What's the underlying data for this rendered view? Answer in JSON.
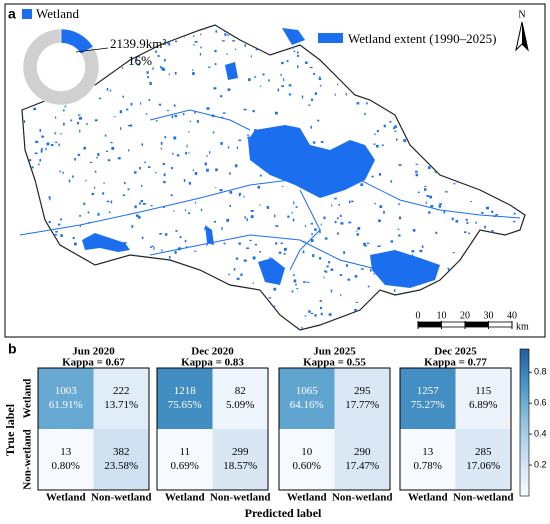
{
  "chart_data": [
    {
      "type": "pie",
      "categories": [
        "Wetland",
        null
      ],
      "values": [
        16,
        84
      ],
      "colors": [
        "#1b6fee",
        "#d0d0d0"
      ],
      "value_labels": [
        "16%",
        null
      ],
      "annotation": "2139.9km²"
    },
    {
      "type": "heatmap",
      "title": "Jun 2020",
      "subtitle": "Kappa = 0.67",
      "counts": [
        [
          1003,
          222
        ],
        [
          13,
          382
        ]
      ],
      "values": [
        [
          0.6191,
          0.1371
        ],
        [
          0.008,
          0.2358
        ]
      ],
      "value_labels": [
        [
          "61.91%",
          "13.71%"
        ],
        [
          "0.80%",
          "23.58%"
        ]
      ]
    },
    {
      "type": "heatmap",
      "title": "Dec 2020",
      "subtitle": "Kappa = 0.83",
      "counts": [
        [
          1218,
          82
        ],
        [
          11,
          299
        ]
      ],
      "values": [
        [
          0.7565,
          0.0509
        ],
        [
          0.0069,
          0.1857
        ]
      ],
      "value_labels": [
        [
          "75.65%",
          "5.09%"
        ],
        [
          "0.69%",
          "18.57%"
        ]
      ]
    },
    {
      "type": "heatmap",
      "title": "Jun 2025",
      "subtitle": "Kappa = 0.55",
      "counts": [
        [
          1065,
          295
        ],
        [
          10,
          290
        ]
      ],
      "values": [
        [
          0.6416,
          0.1777
        ],
        [
          0.006,
          0.1747
        ]
      ],
      "value_labels": [
        [
          "64.16%",
          "17.77%"
        ],
        [
          "0.60%",
          "17.47%"
        ]
      ]
    },
    {
      "type": "heatmap",
      "title": "Dec 2025",
      "subtitle": "Kappa = 0.77",
      "counts": [
        [
          1257,
          115
        ],
        [
          13,
          285
        ]
      ],
      "values": [
        [
          0.7527,
          0.0689
        ],
        [
          0.0078,
          0.1706
        ]
      ],
      "value_labels": [
        [
          "75.27%",
          "6.89%"
        ],
        [
          "0.78%",
          "17.06%"
        ]
      ]
    }
  ],
  "map": {
    "panel_label": "a",
    "legend": "Wetland extent (1990–2025)",
    "color": "#1b6fee",
    "north": "N",
    "scale_ticks": [
      0,
      10,
      20,
      30,
      40
    ],
    "scale_unit": "km"
  },
  "panel_b": {
    "panel_label": "b",
    "x_label": "Predicted label",
    "y_label": "True label",
    "categories": [
      "Wetland",
      "Non-wetland"
    ],
    "clim": [
      0,
      0.95
    ],
    "cticks": [
      0.2,
      0.4,
      0.6,
      0.8
    ]
  }
}
